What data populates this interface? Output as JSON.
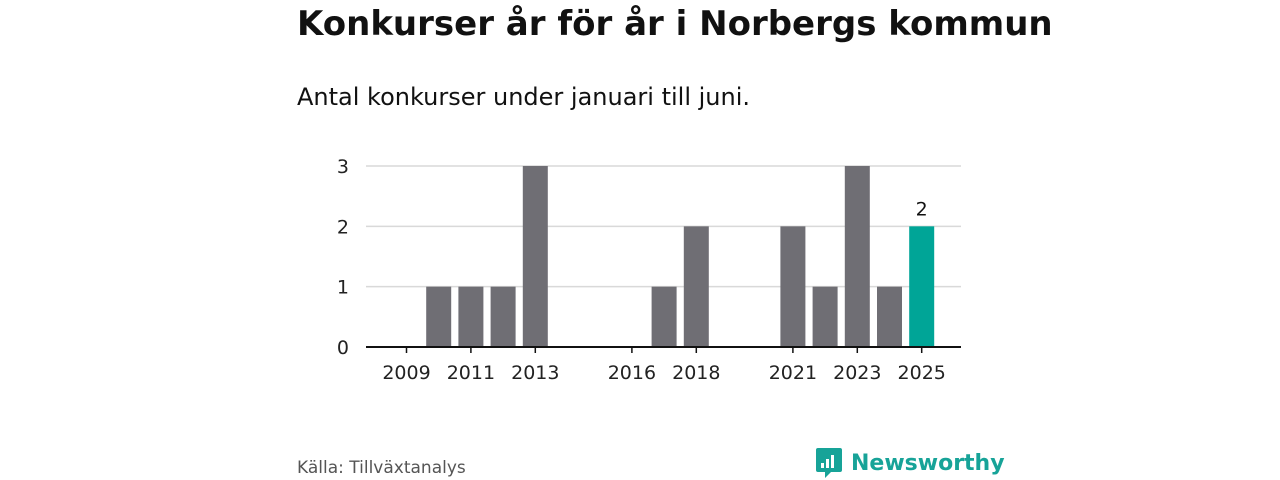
{
  "title": "Konkurser år för år i Norbergs kommun",
  "subtitle": "Antal konkurser under januari till juni.",
  "source": "Källa: Tillväxtanalys",
  "brand": {
    "name": "Newsworthy",
    "logo_icon": "newsworthy-logo-icon"
  },
  "colors": {
    "bar": "#6f6e74",
    "highlight": "#00a597",
    "grid": "#d9d9d9",
    "axis": "#111111",
    "brand": "#17a398"
  },
  "chart_data": {
    "type": "bar",
    "title": "Konkurser år för år i Norbergs kommun",
    "subtitle": "Antal konkurser under januari till juni.",
    "xlabel": "",
    "ylabel": "",
    "x": [
      2009,
      2010,
      2011,
      2012,
      2013,
      2014,
      2015,
      2016,
      2017,
      2018,
      2019,
      2020,
      2021,
      2022,
      2023,
      2024,
      2025
    ],
    "values": [
      0,
      1,
      1,
      1,
      3,
      0,
      0,
      0,
      1,
      2,
      0,
      0,
      2,
      1,
      3,
      1,
      2
    ],
    "highlight": 2025,
    "data_labels": [
      {
        "x": 2025,
        "label": "2"
      }
    ],
    "x_tick_labels": [
      "2009",
      "2011",
      "2013",
      "2016",
      "2018",
      "2021",
      "2023",
      "2025"
    ],
    "y_ticks": [
      0,
      1,
      2,
      3
    ],
    "ylim": [
      0,
      3
    ],
    "grid": true,
    "legend": "none"
  }
}
